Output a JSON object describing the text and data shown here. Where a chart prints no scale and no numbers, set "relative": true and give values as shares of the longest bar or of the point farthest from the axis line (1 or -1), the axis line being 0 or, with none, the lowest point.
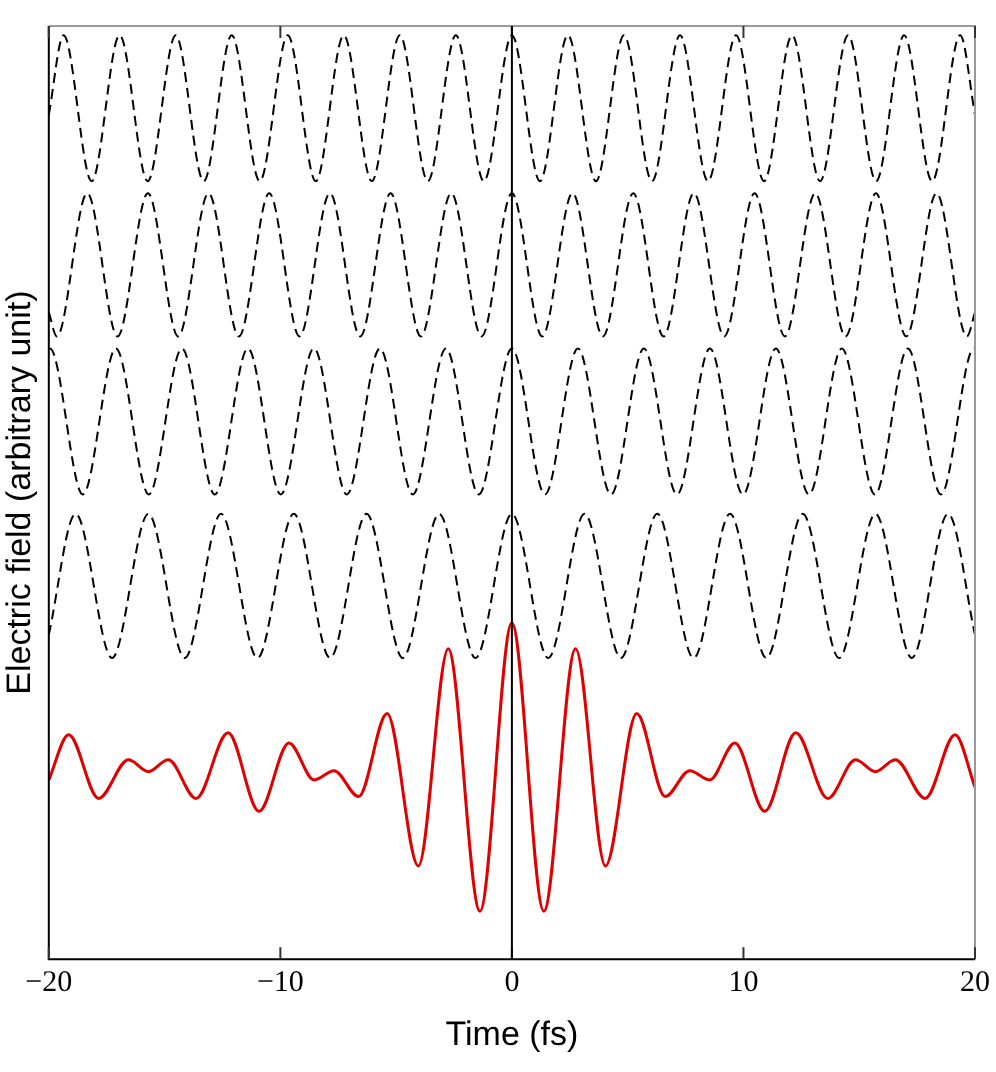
{
  "chart_data": {
    "type": "line",
    "xlabel": "Time (fs)",
    "ylabel": "Electric field (arbitrary unit)",
    "relative": true,
    "xlim": [
      -20,
      20
    ],
    "xticks": [
      {
        "value": -20,
        "label": "−20"
      },
      {
        "value": -10,
        "label": "−10"
      },
      0,
      10,
      20
    ],
    "grid": false,
    "legend": false,
    "marker": "none",
    "ref_lines": [
      {
        "axis": "x",
        "value": 0,
        "color": "#000000"
      }
    ],
    "series": [
      {
        "color": "#000000",
        "line_style": "dashed",
        "x": [
          -20,
          -19.36,
          -18.15,
          -16.94,
          -15.73,
          -14.52,
          -13.31,
          -12.1,
          -10.89,
          -9.68,
          -8.47,
          -7.26,
          -6.05,
          -4.84,
          -3.63,
          -2.42,
          -1.21,
          0,
          1.21,
          2.42,
          3.63,
          4.84,
          6.05,
          7.26,
          8.47,
          9.68,
          10.89,
          12.1,
          13.31,
          14.52,
          15.73,
          16.94,
          18.15,
          19.36,
          20
        ],
        "values": [
          0.914,
          1,
          0.842,
          1,
          0.842,
          1,
          0.842,
          1,
          0.842,
          1,
          0.842,
          1,
          0.842,
          1,
          0.842,
          1,
          0.842,
          1,
          0.842,
          1,
          0.842,
          1,
          0.842,
          1,
          0.842,
          1,
          0.842,
          1,
          0.842,
          1,
          0.842,
          1,
          0.842,
          1,
          0.914
        ]
      },
      {
        "color": "#000000",
        "line_style": "dashed",
        "x": [
          -20,
          -19.65,
          -18.34,
          -17.03,
          -15.72,
          -14.41,
          -13.1,
          -11.79,
          -10.48,
          -9.17,
          -7.86,
          -6.55,
          -5.24,
          -3.93,
          -2.62,
          -1.31,
          0,
          1.31,
          2.62,
          3.93,
          5.24,
          6.55,
          7.86,
          9.17,
          10.48,
          11.79,
          13.1,
          14.41,
          15.72,
          17.03,
          18.34,
          19.65,
          20
        ],
        "values": [
          0.7,
          0.674,
          0.829,
          0.674,
          0.829,
          0.674,
          0.829,
          0.674,
          0.829,
          0.674,
          0.829,
          0.674,
          0.829,
          0.674,
          0.829,
          0.674,
          0.829,
          0.674,
          0.829,
          0.674,
          0.829,
          0.674,
          0.829,
          0.674,
          0.829,
          0.674,
          0.829,
          0.674,
          0.829,
          0.674,
          0.829,
          0.674,
          0.7
        ]
      },
      {
        "color": "#000000",
        "line_style": "dashed",
        "x": [
          -20,
          -19.95,
          -18.53,
          -17.1,
          -15.68,
          -14.25,
          -12.83,
          -11.4,
          -9.98,
          -8.55,
          -7.13,
          -5.7,
          -4.28,
          -2.85,
          -1.43,
          0,
          1.43,
          2.85,
          4.28,
          5.7,
          7.13,
          8.55,
          9.98,
          11.4,
          12.83,
          14.25,
          15.68,
          17.1,
          18.53,
          19.95,
          20
        ],
        "values": [
          0.661,
          0.661,
          0.503,
          0.661,
          0.503,
          0.661,
          0.503,
          0.661,
          0.503,
          0.661,
          0.503,
          0.661,
          0.503,
          0.661,
          0.503,
          0.661,
          0.503,
          0.661,
          0.503,
          0.661,
          0.503,
          0.661,
          0.503,
          0.661,
          0.503,
          0.661,
          0.503,
          0.661,
          0.503,
          0.661,
          0.661
        ]
      },
      {
        "color": "#000000",
        "line_style": "dashed",
        "x": [
          -20,
          -18.84,
          -17.27,
          -15.7,
          -14.13,
          -12.56,
          -10.99,
          -9.42,
          -7.85,
          -6.28,
          -4.71,
          -3.14,
          -1.57,
          0,
          1.57,
          3.14,
          4.71,
          6.28,
          7.85,
          9.42,
          10.99,
          12.56,
          14.13,
          15.7,
          17.27,
          18.84,
          20
        ],
        "values": [
          0.351,
          0.482,
          0.326,
          0.482,
          0.326,
          0.482,
          0.326,
          0.482,
          0.326,
          0.482,
          0.326,
          0.482,
          0.326,
          0.482,
          0.326,
          0.482,
          0.326,
          0.482,
          0.326,
          0.482,
          0.326,
          0.482,
          0.326,
          0.482,
          0.326,
          0.482,
          0.351
        ]
      },
      {
        "color": "#e00000",
        "line_style": "solid",
        "x": [
          -20,
          -19.14,
          -17.85,
          -16.56,
          -15.7,
          -14.84,
          -13.64,
          -12.26,
          -10.92,
          -9.63,
          -8.54,
          -7.68,
          -6.62,
          -5.39,
          -4.04,
          -2.75,
          -1.38,
          0,
          1.38,
          2.75,
          4.04,
          5.39,
          6.62,
          7.68,
          8.54,
          9.63,
          10.92,
          12.26,
          13.64,
          14.84,
          15.7,
          16.56,
          17.85,
          19.14,
          20
        ],
        "values": [
          0.194,
          0.243,
          0.174,
          0.216,
          0.203,
          0.216,
          0.174,
          0.245,
          0.16,
          0.234,
          0.194,
          0.204,
          0.176,
          0.266,
          0.101,
          0.336,
          0.052,
          0.364,
          0.052,
          0.336,
          0.101,
          0.266,
          0.176,
          0.204,
          0.194,
          0.234,
          0.16,
          0.245,
          0.174,
          0.216,
          0.203,
          0.216,
          0.174,
          0.243,
          0.186
        ]
      }
    ]
  }
}
